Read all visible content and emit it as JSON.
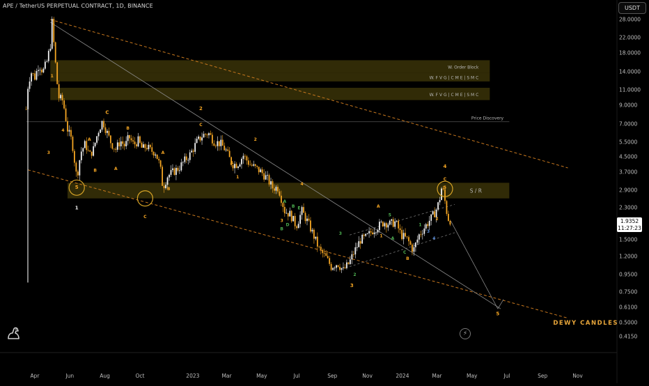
{
  "header": {
    "title": "APE / TetherUS PERPETUAL CONTRACT, 1D, BINANCE",
    "currency_label": "USDT"
  },
  "price_badge": {
    "price": "1.9352",
    "countdown": "11:27:23"
  },
  "colors": {
    "background": "#000000",
    "candle": "#f5a623",
    "zone": "#3a3208",
    "channel_line": "#c8781e",
    "trend_line": "#8a8a8a",
    "wave_label": "#f5a623",
    "wave_label_green": "#4caf50",
    "wave_label_blue": "#5d8fd9"
  },
  "chart_data": {
    "type": "line",
    "symbol": "APE / TetherUS PERPETUAL CONTRACT",
    "timeframe": "1D",
    "exchange": "BINANCE",
    "y_scale": "log",
    "ylim": [
      0.38,
      32
    ],
    "y_ticks": [
      "28.0000",
      "22.0000",
      "18.0000",
      "14.0000",
      "11.0000",
      "9.0000",
      "7.0000",
      "5.5000",
      "4.5000",
      "3.7000",
      "2.9000",
      "2.3000",
      "1.9000",
      "1.5000",
      "1.2000",
      "0.9500",
      "0.7500",
      "0.6100",
      "0.5000",
      "0.4150"
    ],
    "x_ticks": [
      "Apr",
      "Jun",
      "Aug",
      "Oct",
      "2023",
      "Mar",
      "May",
      "Jul",
      "Sep",
      "Nov",
      "2024",
      "Mar",
      "May",
      "Jul",
      "Sep",
      "Nov"
    ],
    "series": [
      {
        "x": [
          "2022-03-17",
          "2022-03-20",
          "2022-03-25",
          "2022-04-01",
          "2022-04-08",
          "2022-04-15",
          "2022-04-22",
          "2022-04-28",
          "2022-05-01",
          "2022-05-06",
          "2022-05-12",
          "2022-05-20",
          "2022-05-28",
          "2022-06-05",
          "2022-06-13",
          "2022-06-20",
          "2022-06-28",
          "2022-07-05",
          "2022-07-12",
          "2022-07-20",
          "2022-07-28",
          "2022-08-05",
          "2022-08-12",
          "2022-08-20",
          "2022-08-28",
          "2022-09-05",
          "2022-09-12",
          "2022-09-20",
          "2022-09-28",
          "2022-10-05",
          "2022-10-12",
          "2022-10-20",
          "2022-10-28",
          "2022-11-05",
          "2022-11-10",
          "2022-11-18",
          "2022-11-28",
          "2022-12-08",
          "2022-12-18",
          "2022-12-28",
          "2023-01-08",
          "2023-01-18",
          "2023-01-28",
          "2023-02-08",
          "2023-02-18",
          "2023-02-28",
          "2023-03-10",
          "2023-03-20",
          "2023-03-30",
          "2023-04-10",
          "2023-04-20",
          "2023-04-30",
          "2023-05-10",
          "2023-05-20",
          "2023-05-30",
          "2023-06-10",
          "2023-06-20",
          "2023-06-30",
          "2023-07-10",
          "2023-07-20",
          "2023-07-30",
          "2023-08-10",
          "2023-08-20",
          "2023-08-30",
          "2023-09-10",
          "2023-09-20",
          "2023-09-30",
          "2023-10-10",
          "2023-10-20",
          "2023-10-30",
          "2023-11-10",
          "2023-11-20",
          "2023-11-30",
          "2023-12-10",
          "2023-12-20",
          "2023-12-30",
          "2024-01-10",
          "2024-01-20",
          "2024-01-30",
          "2024-02-10",
          "2024-02-20",
          "2024-02-28",
          "2024-03-05",
          "2024-03-10",
          "2024-03-15",
          "2024-03-20",
          "2024-03-25"
        ],
        "close": [
          8.5,
          11.5,
          14.0,
          13.0,
          15.5,
          14.0,
          16.0,
          20.0,
          27.0,
          17.0,
          10.0,
          9.5,
          6.5,
          5.5,
          3.4,
          4.8,
          5.4,
          4.6,
          5.0,
          6.3,
          7.3,
          6.2,
          5.4,
          5.0,
          5.6,
          5.2,
          5.9,
          5.3,
          5.6,
          5.0,
          5.2,
          4.9,
          4.8,
          4.0,
          3.0,
          3.5,
          3.7,
          3.9,
          4.3,
          4.7,
          5.5,
          6.0,
          6.2,
          5.5,
          5.4,
          4.9,
          4.1,
          4.1,
          4.6,
          4.1,
          3.9,
          3.7,
          3.4,
          3.0,
          3.0,
          2.2,
          2.1,
          1.8,
          2.2,
          1.9,
          1.6,
          1.3,
          1.2,
          1.05,
          1.1,
          1.0,
          1.1,
          1.3,
          1.5,
          1.55,
          1.7,
          1.8,
          1.9,
          1.85,
          1.9,
          1.6,
          1.5,
          1.3,
          1.6,
          1.8,
          2.0,
          2.2,
          2.5,
          3.1,
          2.5,
          2.0,
          1.9352
        ]
      }
    ],
    "zones": [
      {
        "label": "W. Order Block",
        "low": 13.8,
        "high": 16.3,
        "start": "2022-04-28",
        "end": "2024-06-01"
      },
      {
        "label": "W.  F V G | C M E | S M C",
        "low": 12.3,
        "high": 13.8,
        "start": "2022-04-28",
        "end": "2024-06-01"
      },
      {
        "label": "W.  F V G | C M E | S M C",
        "low": 9.6,
        "high": 11.3,
        "start": "2022-04-28",
        "end": "2024-06-01"
      },
      {
        "label": "S / R",
        "low": 2.6,
        "high": 3.2,
        "start": "2022-05-28",
        "end": "2024-07-05"
      }
    ],
    "levels": [
      {
        "label": "Price  Discovery",
        "value": 7.2
      }
    ],
    "watermark": "DEWY CANDLES",
    "wave_labels": [
      "1",
      "2",
      "3",
      "4",
      "5",
      "A",
      "B",
      "C",
      "D",
      "E"
    ]
  }
}
